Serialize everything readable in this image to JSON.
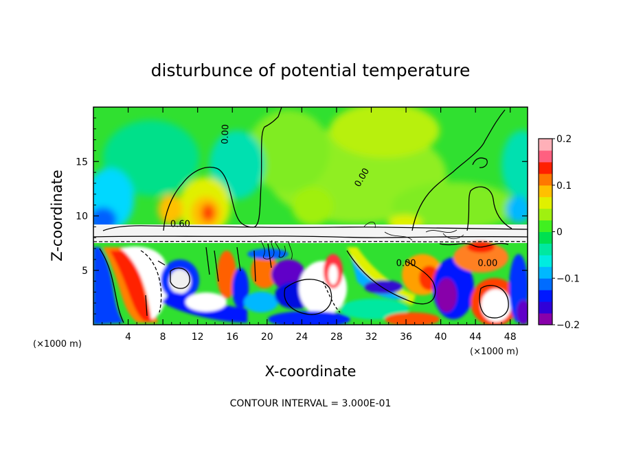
{
  "chart_data": {
    "type": "heatmap",
    "title": "disturbunce of potential temperature",
    "xlabel": "X-coordinate",
    "ylabel": "Z-coordinate",
    "x_unit_label": "(×1000 m)",
    "x_ticks": [
      4,
      8,
      12,
      16,
      20,
      24,
      28,
      32,
      36,
      40,
      44,
      48
    ],
    "y_ticks": [
      5,
      10,
      15
    ],
    "xlim": [
      0,
      50
    ],
    "ylim": [
      0,
      20
    ],
    "colorbar": {
      "ticks": [
        -0.2,
        -0.1,
        0,
        0.1,
        0.2
      ],
      "tick_labels": [
        "−0.2",
        "−0.1",
        "0",
        "0.1",
        "0.2"
      ],
      "range": [
        -0.2,
        0.2
      ],
      "colors": [
        "#8800aa",
        "#3000d8",
        "#0018ff",
        "#006cff",
        "#00b8ff",
        "#00ece0",
        "#00e8a0",
        "#00e050",
        "#40f020",
        "#a0f010",
        "#e0f000",
        "#ffc000",
        "#ff7800",
        "#ff2000",
        "#ff6080",
        "#ffb0b8"
      ]
    },
    "contour_labels": [
      {
        "text": "0.00",
        "x": 15.5,
        "y": 17.5,
        "rotate": -88
      },
      {
        "text": "0.00",
        "x": 31.2,
        "y": 13.4,
        "rotate": -60
      },
      {
        "text": "0.00",
        "x": 36.0,
        "y": 5.4,
        "rotate": 0
      },
      {
        "text": "0.60",
        "x": 10.0,
        "y": 9.0,
        "rotate": 0
      },
      {
        "text": "0.00",
        "x": 45.4,
        "y": 5.4,
        "rotate": 0
      }
    ],
    "contour_interval_label": "CONTOUR INTERVAL = 3.000E-01"
  }
}
